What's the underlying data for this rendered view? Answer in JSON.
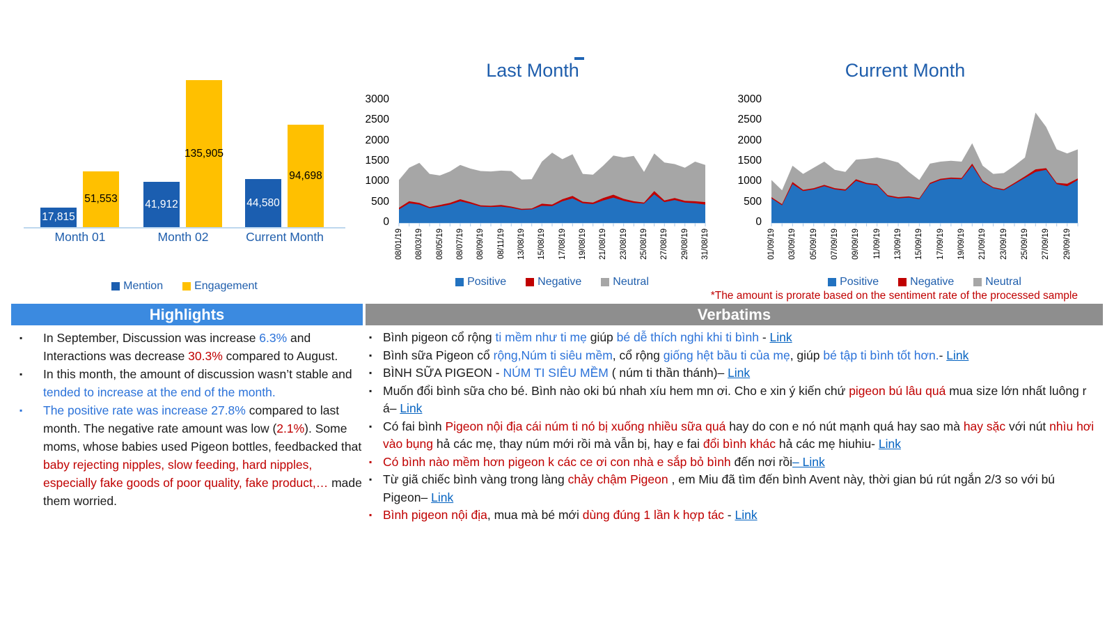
{
  "colors": {
    "bar_blue": "#1B5EB0",
    "bar_yellow": "#FFC000",
    "area_blue": "#2272C0",
    "area_red": "#C00000",
    "area_gray": "#A6A6A6",
    "chart_text_blue": "#1F5EAC",
    "highlight_header_bg": "#3B8AE0",
    "verbatim_header_bg": "#8E8E8E",
    "text_blue": "#2B72D9",
    "text_red": "#C00000",
    "link_blue": "#0563C1"
  },
  "chart_data": [
    {
      "type": "bar",
      "categories": [
        "Month 01",
        "Month 02",
        "Current Month"
      ],
      "series": [
        {
          "name": "Mention",
          "color_key": "bar_blue",
          "values": [
            17815,
            41912,
            44580
          ],
          "labels": [
            "17,815",
            "41,912",
            "44,580"
          ],
          "label_color": "#FFFFFF"
        },
        {
          "name": "Engagement",
          "color_key": "bar_yellow",
          "values": [
            51553,
            135905,
            94698
          ],
          "labels": [
            "51,553",
            "135,905",
            "94,698"
          ],
          "label_color": "#000000"
        }
      ],
      "ylim": [
        0,
        140000
      ],
      "legend_position": "bottom"
    },
    {
      "type": "area",
      "stacked": true,
      "title": "Last Month",
      "x_labels": [
        "08/01/19",
        "08/03/19",
        "08/05/19",
        "08/07/19",
        "08/09/19",
        "08/11/19",
        "13/08/19",
        "15/08/19",
        "17/08/19",
        "19/08/19",
        "21/08/19",
        "23/08/19",
        "25/08/19",
        "27/08/19",
        "29/08/19",
        "31/08/19"
      ],
      "yticks": [
        0,
        500,
        1000,
        1500,
        2000,
        2500,
        3000
      ],
      "ylim": [
        0,
        3000
      ],
      "legend_position": "bottom",
      "series": [
        {
          "name": "Positive",
          "color_key": "area_blue",
          "values": [
            330,
            480,
            450,
            360,
            400,
            450,
            530,
            470,
            400,
            390,
            400,
            370,
            320,
            330,
            420,
            410,
            530,
            600,
            480,
            460,
            550,
            620,
            540,
            490,
            470,
            700,
            510,
            560,
            500,
            480,
            450
          ]
        },
        {
          "name": "Negative",
          "color_key": "area_red",
          "values": [
            40,
            50,
            40,
            30,
            40,
            40,
            50,
            40,
            30,
            30,
            40,
            30,
            25,
            25,
            50,
            40,
            50,
            60,
            40,
            40,
            60,
            70,
            50,
            40,
            30,
            80,
            40,
            50,
            40,
            50,
            60
          ]
        },
        {
          "name": "Neutral",
          "color_key": "area_gray",
          "values": [
            680,
            820,
            980,
            810,
            720,
            770,
            840,
            820,
            840,
            840,
            840,
            870,
            715,
            715,
            1030,
            1270,
            980,
            1020,
            680,
            680,
            790,
            960,
            1010,
            1110,
            750,
            920,
            930,
            830,
            810,
            970,
            910
          ]
        }
      ]
    },
    {
      "type": "area",
      "stacked": true,
      "title": "Current Month",
      "note": "*The amount is prorate based on the sentiment rate of the processed sample",
      "x_labels": [
        "01/09/19",
        "03/09/19",
        "05/09/19",
        "07/09/19",
        "09/09/19",
        "11/09/19",
        "13/09/19",
        "15/09/19",
        "17/09/19",
        "19/09/19",
        "21/09/19",
        "23/09/19",
        "25/09/19",
        "27/09/19",
        "29/09/19"
      ],
      "yticks": [
        0,
        500,
        1000,
        1500,
        2000,
        2500,
        3000
      ],
      "ylim": [
        0,
        3000
      ],
      "legend_position": "bottom",
      "series": [
        {
          "name": "Positive",
          "color_key": "area_blue",
          "values": [
            600,
            430,
            950,
            780,
            820,
            900,
            820,
            790,
            1030,
            950,
            920,
            650,
            600,
            620,
            580,
            950,
            1050,
            1080,
            1070,
            1400,
            1000,
            850,
            800,
            950,
            1100,
            1250,
            1300,
            950,
            900,
            1050
          ]
        },
        {
          "name": "Negative",
          "color_key": "area_red",
          "values": [
            30,
            30,
            50,
            30,
            30,
            30,
            30,
            30,
            40,
            30,
            30,
            30,
            30,
            30,
            25,
            30,
            30,
            30,
            30,
            50,
            30,
            25,
            25,
            30,
            40,
            60,
            40,
            30,
            60,
            40
          ]
        },
        {
          "name": "Neutral",
          "color_key": "area_gray",
          "values": [
            420,
            340,
            400,
            390,
            500,
            570,
            450,
            430,
            480,
            590,
            650,
            870,
            850,
            600,
            445,
            470,
            420,
            410,
            400,
            500,
            370,
            325,
            395,
            420,
            460,
            1390,
            1010,
            820,
            740,
            710
          ]
        }
      ]
    }
  ],
  "highlights": {
    "title": "Highlights",
    "bullets": [
      {
        "marker": "black",
        "segments": [
          {
            "c": "black",
            "t": "In September, Discussion was increase "
          },
          {
            "c": "blue",
            "t": "6.3%"
          },
          {
            "c": "black",
            "t": " and Interactions was decrease "
          },
          {
            "c": "red",
            "t": "30.3%"
          },
          {
            "c": "black",
            "t": " compared to August."
          }
        ]
      },
      {
        "marker": "black",
        "segments": [
          {
            "c": "black",
            "t": "In this month, the amount of discussion wasn’t stable and "
          },
          {
            "c": "blue",
            "t": "tended to increase at the end of the month."
          }
        ]
      },
      {
        "marker": "blue",
        "segments": [
          {
            "c": "blue",
            "t": "The positive rate was increase 27.8%"
          },
          {
            "c": "black",
            "t": " compared to last month. The negative rate amount was low ("
          },
          {
            "c": "red",
            "t": "2.1%"
          },
          {
            "c": "black",
            "t": "). Some moms, whose babies used Pigeon bottles, feedbacked that "
          },
          {
            "c": "red",
            "t": "baby rejecting nipples, slow feeding, hard nipples, especially fake goods of poor quality, fake product,…"
          },
          {
            "c": "black",
            "t": " made them worried."
          }
        ]
      }
    ]
  },
  "verbatims": {
    "title": "Verbatims",
    "bullets": [
      {
        "marker": "black",
        "segments": [
          {
            "c": "black",
            "t": "Bình pigeon cổ rộng "
          },
          {
            "c": "blue",
            "t": "ti mềm như ti mẹ"
          },
          {
            "c": "black",
            "t": " giúp "
          },
          {
            "c": "blue",
            "t": "bé dễ thích nghi khi ti bình"
          },
          {
            "c": "black",
            "t": " - "
          },
          {
            "c": "link",
            "t": "Link"
          }
        ]
      },
      {
        "marker": "black",
        "segments": [
          {
            "c": "black",
            "t": "Bình sữa Pigeon cổ "
          },
          {
            "c": "blue",
            "t": "rộng,Núm ti siêu mềm"
          },
          {
            "c": "black",
            "t": ", cổ rộng "
          },
          {
            "c": "blue",
            "t": "giống hệt bầu ti của mẹ"
          },
          {
            "c": "black",
            "t": ", giúp "
          },
          {
            "c": "blue",
            "t": "bé tập ti bình tốt hơn."
          },
          {
            "c": "black",
            "t": "- "
          },
          {
            "c": "link",
            "t": "Link"
          }
        ]
      },
      {
        "marker": "black",
        "segments": [
          {
            "c": "black",
            "t": "BÌNH SỮA PIGEON - "
          },
          {
            "c": "blue",
            "t": "NÚM TI SIÊU MỀM"
          },
          {
            "c": "black",
            "t": " ( núm ti thần thánh)– "
          },
          {
            "c": "link",
            "t": "Link"
          }
        ]
      },
      {
        "marker": "black",
        "segments": [
          {
            "c": "black",
            "t": "Muốn đổi bình sữa cho bé. Bình nào oki bú nhah xíu hem mn ơi. Cho e xin ý kiến chứ "
          },
          {
            "c": "red",
            "t": "pigeon bú lâu quá"
          },
          {
            "c": "black",
            "t": " mua size lớn nhất luông r á– "
          },
          {
            "c": "link",
            "t": "Link"
          }
        ]
      },
      {
        "marker": "black",
        "segments": [
          {
            "c": "black",
            "t": "Có fai bình "
          },
          {
            "c": "red",
            "t": "Pigeon nội địa cái núm ti nó bị xuống nhiều sữa quá"
          },
          {
            "c": "black",
            "t": " hay do con e nó nút mạnh quá hay sao mà "
          },
          {
            "c": "red",
            "t": "hay sặc"
          },
          {
            "c": "black",
            "t": " với nút "
          },
          {
            "c": "red",
            "t": "nhìu hơi vào bụng"
          },
          {
            "c": "black",
            "t": " hả các mẹ, thay núm mới rồi mà vẫn bị, hay e fai "
          },
          {
            "c": "red",
            "t": "đổi bình khác"
          },
          {
            "c": "black",
            "t": " hả các mẹ hiuhiu- "
          },
          {
            "c": "link",
            "t": "Link"
          }
        ]
      },
      {
        "marker": "red",
        "segments": [
          {
            "c": "red",
            "t": "Có bình nào mềm hơn pigeon k các ce ơi con nhà e sắp bỏ bình"
          },
          {
            "c": "black",
            "t": " đến nơi rồi"
          },
          {
            "c": "link",
            "t": "– Link"
          }
        ]
      },
      {
        "marker": "black",
        "segments": [
          {
            "c": "black",
            "t": "Từ giã chiếc bình vàng trong làng "
          },
          {
            "c": "red",
            "t": "chảy chậm Pigeon"
          },
          {
            "c": "black",
            "t": " , em Miu đã tìm đến bình Avent này, thời gian bú rút ngắn 2/3 so với bú Pigeon– "
          },
          {
            "c": "link",
            "t": "Link"
          }
        ]
      },
      {
        "marker": "red",
        "segments": [
          {
            "c": "red",
            "t": "Bình pigeon nội địa"
          },
          {
            "c": "black",
            "t": ", mua mà bé mới "
          },
          {
            "c": "red",
            "t": "dùng đúng 1 lần k hợp tác"
          },
          {
            "c": "black",
            "t": " - "
          },
          {
            "c": "link",
            "t": "Link"
          }
        ]
      }
    ]
  }
}
